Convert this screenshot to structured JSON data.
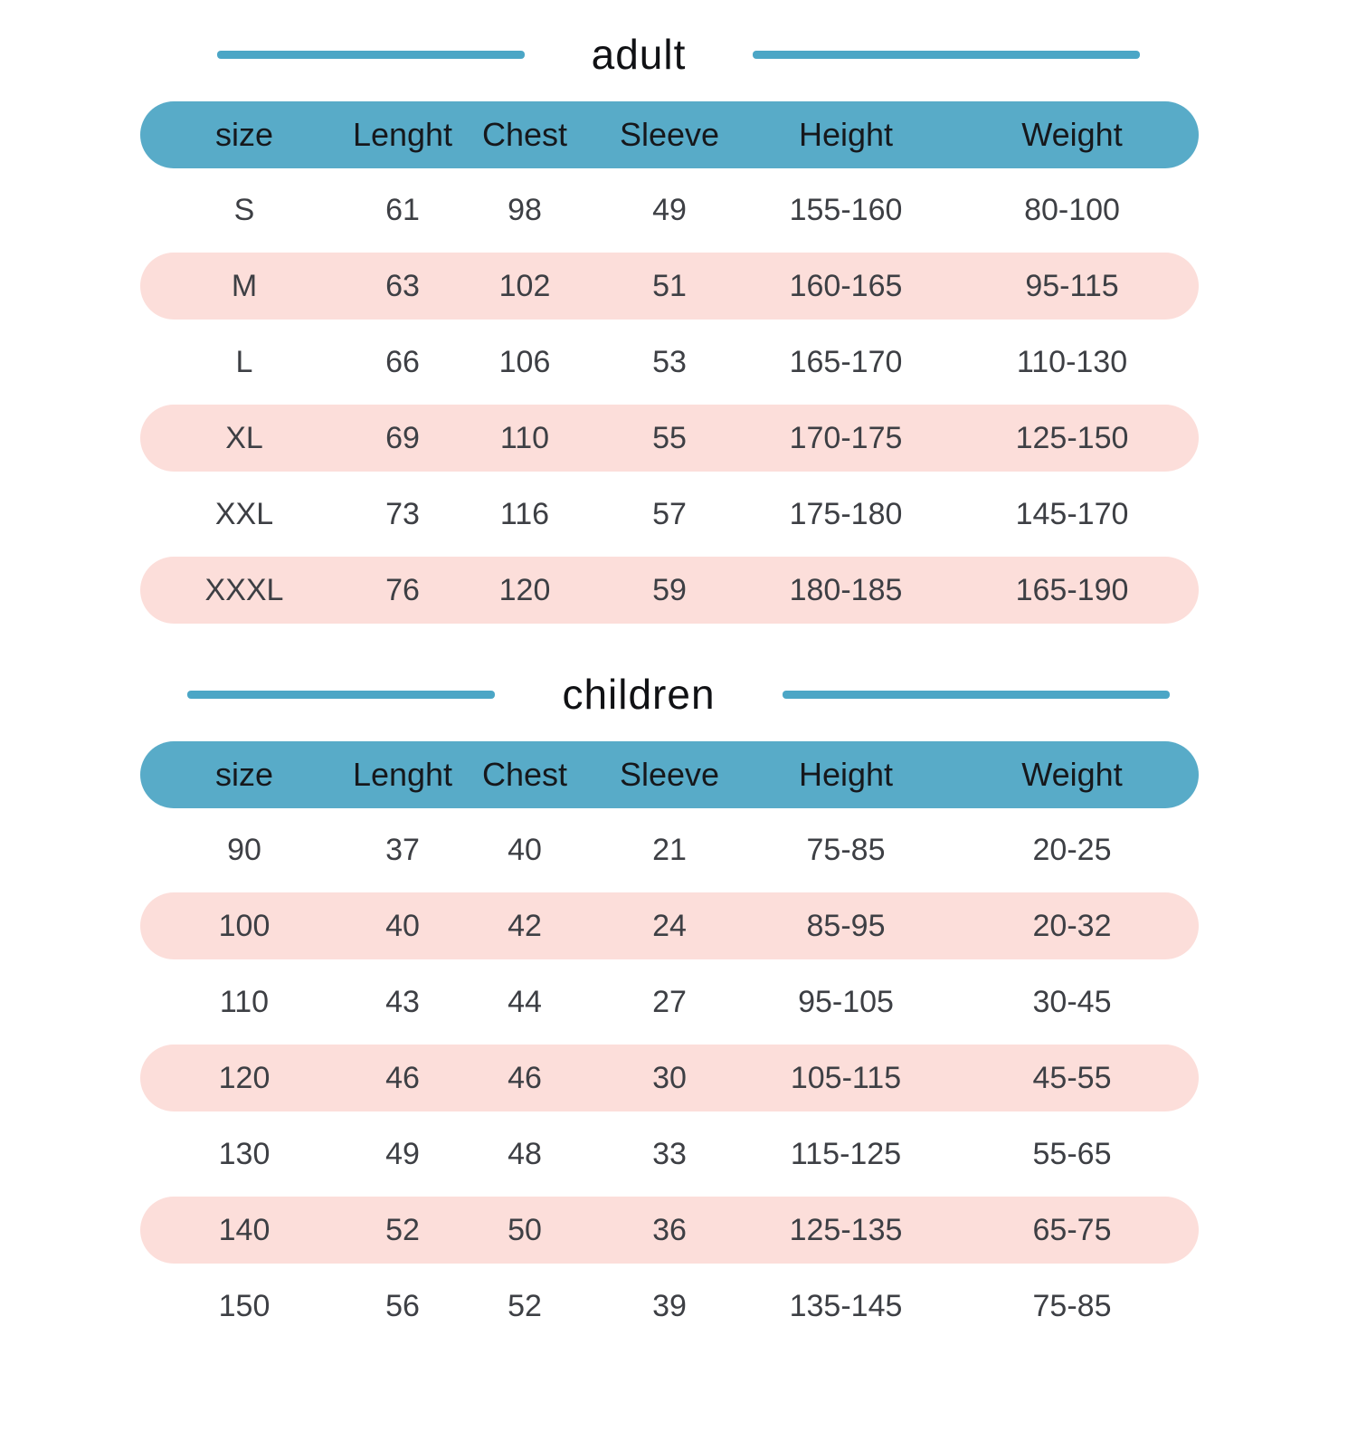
{
  "colors": {
    "header_bar": "#58abc8",
    "title_line": "#4ba6c6",
    "alt_row": "#fcdeda",
    "header_text": "#16181c",
    "cell_text": "#3d3f44"
  },
  "chart_data": [
    {
      "type": "table",
      "title": "adult",
      "columns": [
        "size",
        "Lenght",
        "Chest",
        "Sleeve",
        "Height",
        "Weight"
      ],
      "rows": [
        [
          "S",
          "61",
          "98",
          "49",
          "155-160",
          "80-100"
        ],
        [
          "M",
          "63",
          "102",
          "51",
          "160-165",
          "95-115"
        ],
        [
          "L",
          "66",
          "106",
          "53",
          "165-170",
          "110-130"
        ],
        [
          "XL",
          "69",
          "110",
          "55",
          "170-175",
          "125-150"
        ],
        [
          "XXL",
          "73",
          "116",
          "57",
          "175-180",
          "145-170"
        ],
        [
          "XXXL",
          "76",
          "120",
          "59",
          "180-185",
          "165-190"
        ]
      ],
      "layout": {
        "alt_rows": "even data rows (2nd,4th,6th)",
        "grid": "off",
        "header_style": "teal pill"
      }
    },
    {
      "type": "table",
      "title": "children",
      "columns": [
        "size",
        "Lenght",
        "Chest",
        "Sleeve",
        "Height",
        "Weight"
      ],
      "rows": [
        [
          "90",
          "37",
          "40",
          "21",
          "75-85",
          "20-25"
        ],
        [
          "100",
          "40",
          "42",
          "24",
          "85-95",
          "20-32"
        ],
        [
          "110",
          "43",
          "44",
          "27",
          "95-105",
          "30-45"
        ],
        [
          "120",
          "46",
          "46",
          "30",
          "105-115",
          "45-55"
        ],
        [
          "130",
          "49",
          "48",
          "33",
          "115-125",
          "55-65"
        ],
        [
          "140",
          "52",
          "50",
          "36",
          "125-135",
          "65-75"
        ],
        [
          "150",
          "56",
          "52",
          "39",
          "135-145",
          "75-85"
        ]
      ],
      "layout": {
        "alt_rows": "even data rows (2nd,4th,6th)",
        "grid": "off",
        "header_style": "teal pill"
      }
    }
  ]
}
